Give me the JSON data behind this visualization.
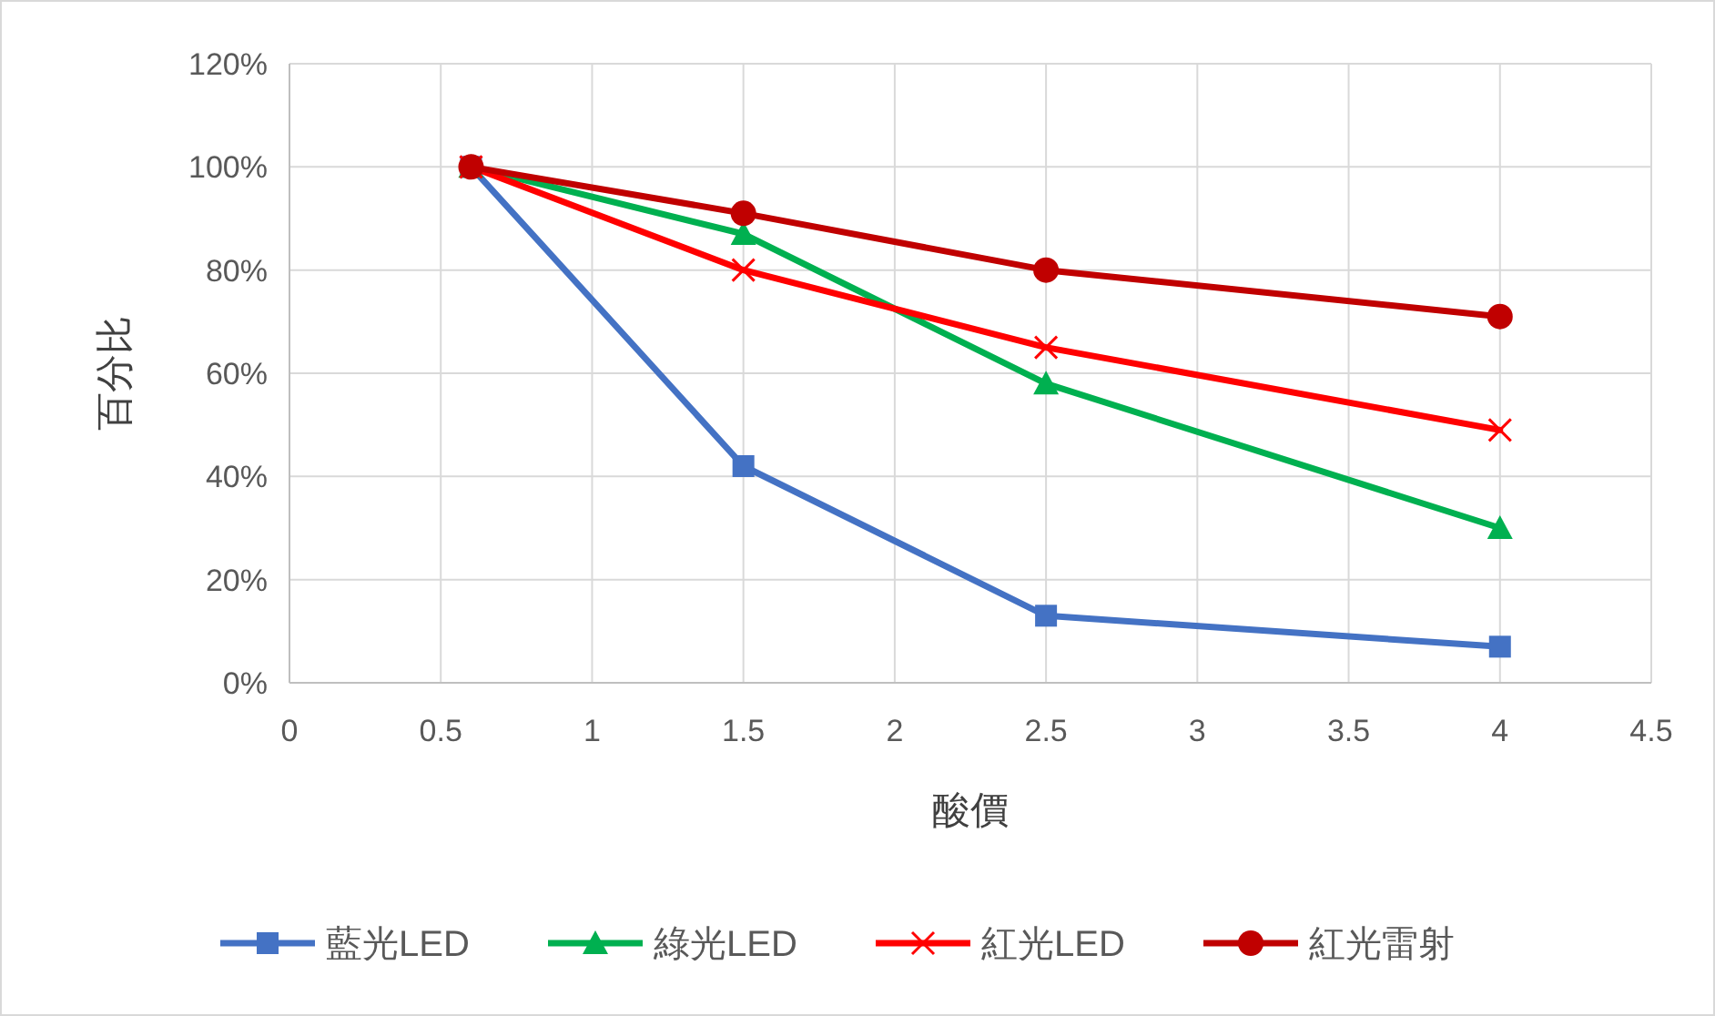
{
  "chart_data": {
    "type": "line",
    "xlabel": "酸價",
    "ylabel": "百分比",
    "x": [
      0.6,
      1.5,
      2.5,
      4
    ],
    "series": [
      {
        "name": "藍光LED",
        "color": "#4472c4",
        "marker": "square",
        "values": [
          100,
          42,
          13,
          7
        ]
      },
      {
        "name": "綠光LED",
        "color": "#00b050",
        "marker": "triangle",
        "values": [
          100,
          87,
          58,
          30
        ]
      },
      {
        "name": "紅光LED",
        "color": "#ff0000",
        "marker": "cross",
        "values": [
          100,
          80,
          65,
          49
        ]
      },
      {
        "name": "紅光雷射",
        "color": "#c00000",
        "marker": "circle",
        "values": [
          100,
          91,
          80,
          71
        ]
      }
    ],
    "xlim": [
      0,
      4.5
    ],
    "xticks": [
      0,
      0.5,
      1,
      1.5,
      2,
      2.5,
      3,
      3.5,
      4,
      4.5
    ],
    "ylim": [
      0,
      120
    ],
    "yticks": [
      {
        "value": 0,
        "label": "0%"
      },
      {
        "value": 20,
        "label": "20%"
      },
      {
        "value": 40,
        "label": "40%"
      },
      {
        "value": 60,
        "label": "60%"
      },
      {
        "value": 80,
        "label": "80%"
      },
      {
        "value": 100,
        "label": "100%"
      },
      {
        "value": 120,
        "label": "120%"
      }
    ],
    "grid": true,
    "legend": "bottom",
    "line_style": "solid"
  }
}
